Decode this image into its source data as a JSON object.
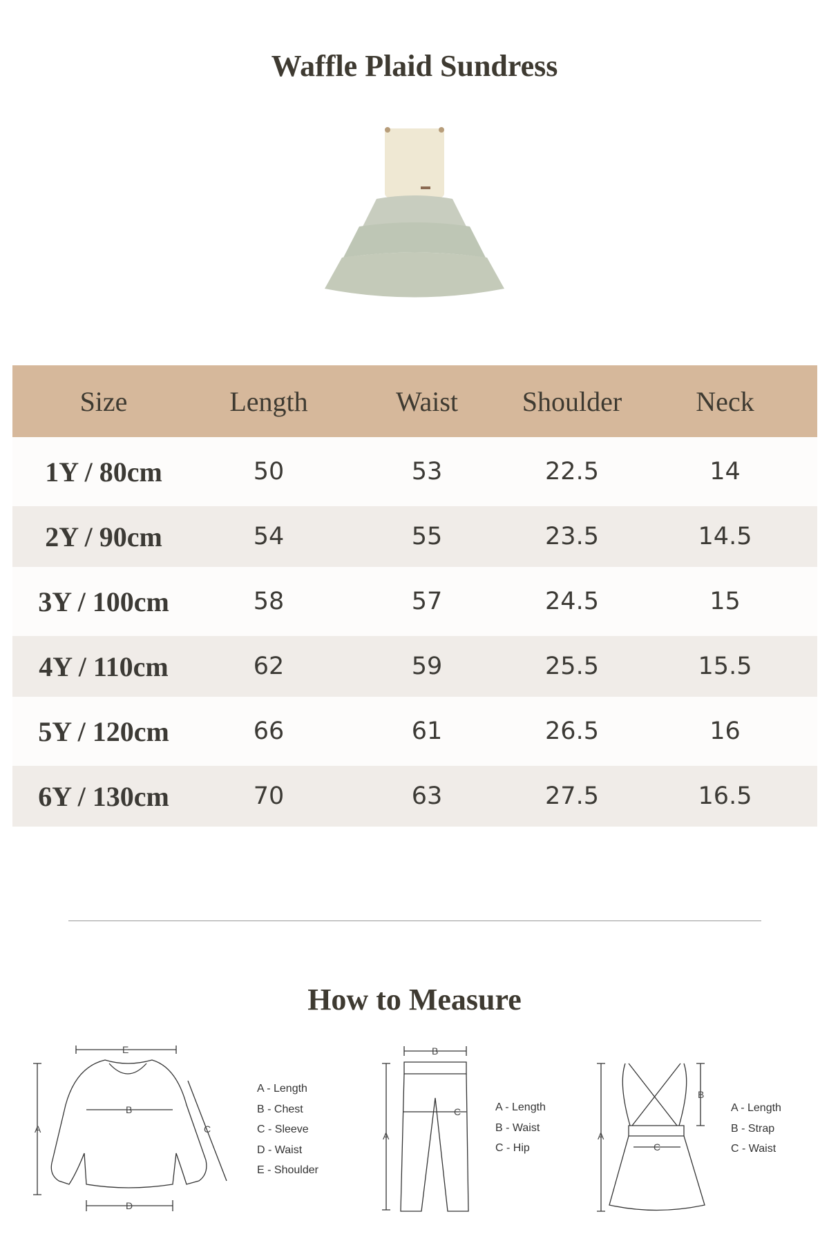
{
  "title": "Waffle Plaid Sundress",
  "product_image": "waffle-plaid-sundress-photo",
  "colors": {
    "header_bg": "#d6b89b",
    "row_alt": "#f0ece8",
    "text": "#3e3a31"
  },
  "table": {
    "headers": [
      "Size",
      "Length",
      "Waist",
      "Shoulder",
      "Neck"
    ],
    "rows": [
      [
        "1Y / 80cm",
        "50",
        "53",
        "22.5",
        "14"
      ],
      [
        "2Y / 90cm",
        "54",
        "55",
        "23.5",
        "14.5"
      ],
      [
        "3Y / 100cm",
        "58",
        "57",
        "24.5",
        "15"
      ],
      [
        "4Y / 110cm",
        "62",
        "59",
        "25.5",
        "15.5"
      ],
      [
        "5Y / 120cm",
        "66",
        "61",
        "26.5",
        "16"
      ],
      [
        "6Y / 130cm",
        "70",
        "63",
        "27.5",
        "16.5"
      ]
    ]
  },
  "how_to_measure": {
    "title": "How to Measure",
    "sweater": {
      "legend": [
        "A - Length",
        "B - Chest",
        "C - Sleeve",
        "D - Waist",
        "E - Shoulder"
      ],
      "labels": [
        "A",
        "B",
        "C",
        "D",
        "E"
      ]
    },
    "pants": {
      "legend": [
        "A - Length",
        "B - Waist",
        "C - Hip"
      ],
      "labels": [
        "A",
        "B",
        "C"
      ]
    },
    "dress": {
      "legend": [
        "A - Length",
        "B - Strap",
        "C - Waist"
      ],
      "labels": [
        "A",
        "B",
        "C"
      ]
    }
  }
}
